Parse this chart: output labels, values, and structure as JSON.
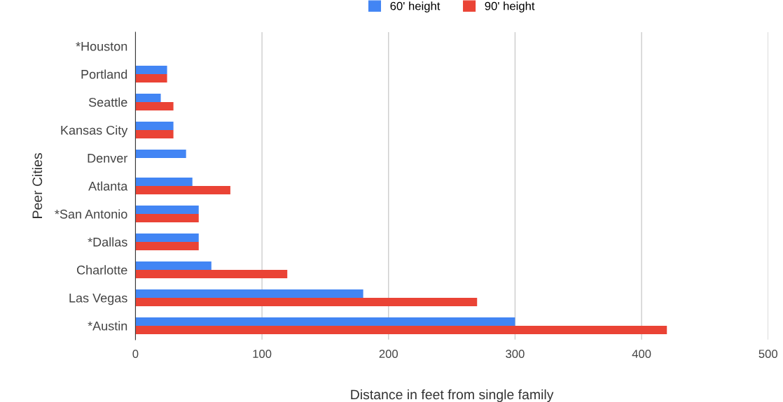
{
  "chart_data": {
    "type": "bar",
    "orientation": "horizontal",
    "xlabel": "Distance in feet from single family",
    "ylabel": "Peer Cities",
    "categories": [
      "*Houston",
      "Portland",
      "Seattle",
      "Kansas City",
      "Denver",
      "Atlanta",
      "*San Antonio",
      "*Dallas",
      "Charlotte",
      "Las Vegas",
      "*Austin"
    ],
    "series": [
      {
        "name": "60' height",
        "color": "#4285f4",
        "values": [
          null,
          25,
          20,
          30,
          40,
          45,
          50,
          50,
          60,
          180,
          300
        ]
      },
      {
        "name": "90' height",
        "color": "#ea4335",
        "values": [
          null,
          25,
          30,
          30,
          null,
          75,
          50,
          50,
          120,
          270,
          420
        ]
      }
    ],
    "xlim": [
      0,
      500
    ],
    "xticks": [
      0,
      100,
      200,
      300,
      400,
      500
    ],
    "grid": "x",
    "legend": "top"
  }
}
